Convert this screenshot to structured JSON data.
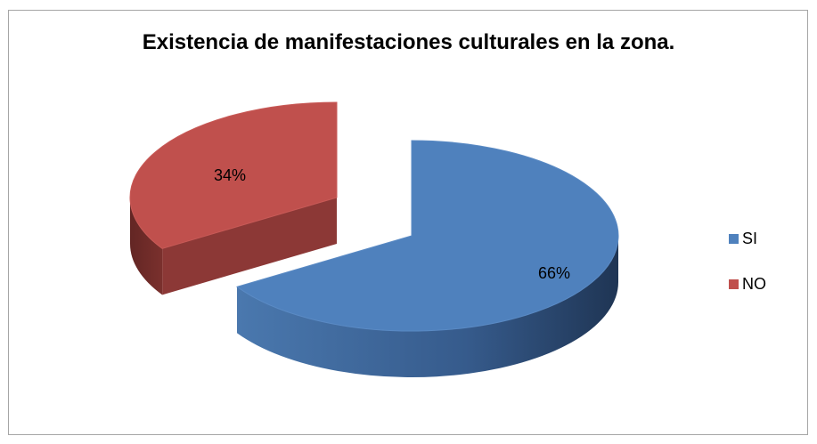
{
  "chart_data": {
    "type": "pie",
    "title": "Existencia de manifestaciones culturales en la zona.",
    "categories": [
      "SI",
      "NO"
    ],
    "values": [
      66,
      34
    ],
    "data_labels": [
      "66%",
      "34%"
    ],
    "colors": [
      "#4f81bd",
      "#c0504d"
    ],
    "exploded": true,
    "three_d": true,
    "legend_position": "right"
  }
}
